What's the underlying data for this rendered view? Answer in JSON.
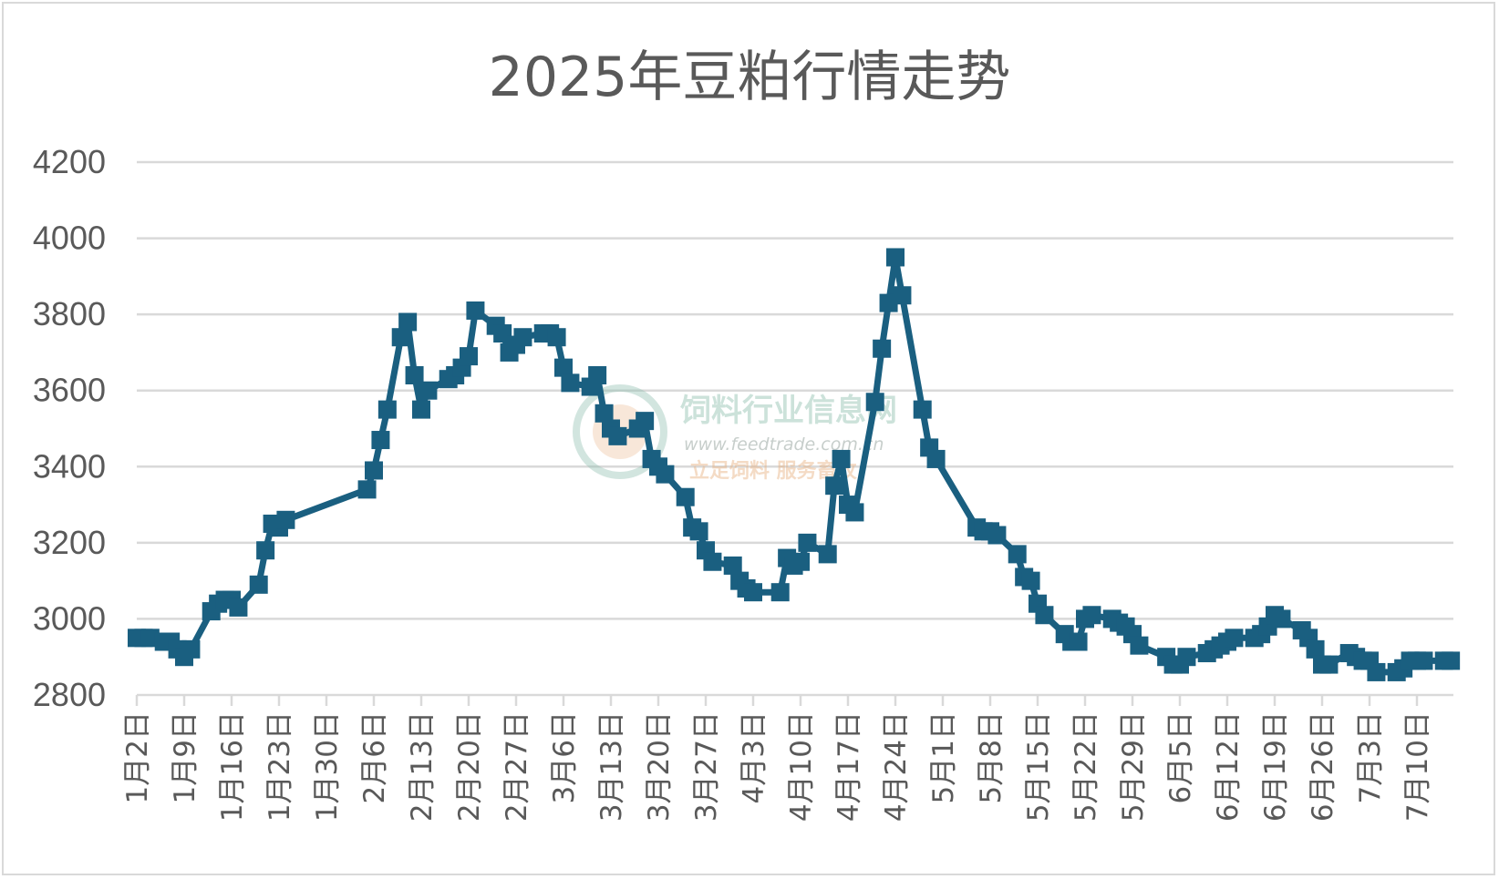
{
  "chart_data": {
    "type": "line",
    "title": "2025年豆粕行情走势",
    "xlabel": "",
    "ylabel": "",
    "ylim": [
      2800,
      4200
    ],
    "yticks": [
      2800,
      3000,
      3200,
      3400,
      3600,
      3800,
      4000,
      4200
    ],
    "grid": true,
    "legend": "none",
    "line_color": "#1a5f80",
    "grid_color": "#d9d9d9",
    "xticks": [
      "1月2日",
      "1月9日",
      "1月16日",
      "1月23日",
      "1月30日",
      "2月6日",
      "2月13日",
      "2月20日",
      "2月27日",
      "3月6日",
      "3月13日",
      "3月20日",
      "3月27日",
      "4月3日",
      "4月10日",
      "4月17日",
      "4月24日",
      "5月1日",
      "5月8日",
      "5月15日",
      "5月22日",
      "5月29日",
      "6月5日",
      "6月12日",
      "6月19日",
      "6月26日",
      "7月3日",
      "7月10日"
    ],
    "x_start": "2025-01-02",
    "x": [
      "2025-01-02",
      "2025-01-03",
      "2025-01-04",
      "2025-01-06",
      "2025-01-07",
      "2025-01-08",
      "2025-01-09",
      "2025-01-10",
      "2025-01-13",
      "2025-01-14",
      "2025-01-15",
      "2025-01-16",
      "2025-01-17",
      "2025-01-20",
      "2025-01-21",
      "2025-01-22",
      "2025-01-23",
      "2025-01-24",
      "2025-02-05",
      "2025-02-06",
      "2025-02-07",
      "2025-02-08",
      "2025-02-10",
      "2025-02-11",
      "2025-02-12",
      "2025-02-13",
      "2025-02-14",
      "2025-02-17",
      "2025-02-18",
      "2025-02-19",
      "2025-02-20",
      "2025-02-21",
      "2025-02-24",
      "2025-02-25",
      "2025-02-26",
      "2025-02-27",
      "2025-02-28",
      "2025-03-03",
      "2025-03-04",
      "2025-03-05",
      "2025-03-06",
      "2025-03-07",
      "2025-03-10",
      "2025-03-11",
      "2025-03-12",
      "2025-03-13",
      "2025-03-14",
      "2025-03-17",
      "2025-03-18",
      "2025-03-19",
      "2025-03-20",
      "2025-03-21",
      "2025-03-24",
      "2025-03-25",
      "2025-03-26",
      "2025-03-27",
      "2025-03-28",
      "2025-03-31",
      "2025-04-01",
      "2025-04-02",
      "2025-04-03",
      "2025-04-07",
      "2025-04-08",
      "2025-04-09",
      "2025-04-10",
      "2025-04-11",
      "2025-04-14",
      "2025-04-15",
      "2025-04-16",
      "2025-04-17",
      "2025-04-18",
      "2025-04-21",
      "2025-04-22",
      "2025-04-23",
      "2025-04-24",
      "2025-04-25",
      "2025-04-28",
      "2025-04-29",
      "2025-04-30",
      "2025-05-06",
      "2025-05-07",
      "2025-05-08",
      "2025-05-09",
      "2025-05-12",
      "2025-05-13",
      "2025-05-14",
      "2025-05-15",
      "2025-05-16",
      "2025-05-19",
      "2025-05-20",
      "2025-05-21",
      "2025-05-22",
      "2025-05-23",
      "2025-05-26",
      "2025-05-27",
      "2025-05-28",
      "2025-05-29",
      "2025-05-30",
      "2025-06-03",
      "2025-06-04",
      "2025-06-05",
      "2025-06-06",
      "2025-06-09",
      "2025-06-10",
      "2025-06-11",
      "2025-06-12",
      "2025-06-13",
      "2025-06-16",
      "2025-06-17",
      "2025-06-18",
      "2025-06-19",
      "2025-06-20",
      "2025-06-23",
      "2025-06-24",
      "2025-06-25",
      "2025-06-26",
      "2025-06-27",
      "2025-06-30",
      "2025-07-01",
      "2025-07-02",
      "2025-07-03",
      "2025-07-04",
      "2025-07-07",
      "2025-07-08",
      "2025-07-09",
      "2025-07-10",
      "2025-07-11",
      "2025-07-14",
      "2025-07-15"
    ],
    "values": [
      2950,
      2950,
      2950,
      2940,
      2940,
      2920,
      2900,
      2920,
      3020,
      3040,
      3050,
      3050,
      3030,
      3090,
      3180,
      3250,
      3240,
      3260,
      3340,
      3390,
      3470,
      3550,
      3740,
      3780,
      3640,
      3550,
      3600,
      3630,
      3640,
      3660,
      3690,
      3810,
      3770,
      3750,
      3700,
      3720,
      3740,
      3750,
      3750,
      3740,
      3660,
      3620,
      3610,
      3640,
      3540,
      3500,
      3480,
      3500,
      3520,
      3420,
      3400,
      3380,
      3320,
      3240,
      3230,
      3180,
      3150,
      3140,
      3100,
      3080,
      3070,
      3070,
      3160,
      3140,
      3150,
      3200,
      3170,
      3350,
      3420,
      3300,
      3280,
      3570,
      3710,
      3830,
      3950,
      3850,
      3550,
      3450,
      3420,
      3240,
      3230,
      3230,
      3220,
      3170,
      3110,
      3100,
      3040,
      3010,
      2960,
      2940,
      2940,
      3000,
      3010,
      3000,
      2990,
      2980,
      2960,
      2930,
      2900,
      2880,
      2880,
      2900,
      2910,
      2920,
      2930,
      2940,
      2950,
      2950,
      2960,
      2980,
      3010,
      3000,
      2970,
      2950,
      2920,
      2880,
      2880,
      2910,
      2900,
      2890,
      2890,
      2860,
      2860,
      2870,
      2890,
      2890,
      2890,
      2890,
      2890
    ]
  },
  "watermark": {
    "name": "饲料行业信息网",
    "url": "www.feedtrade.com.cn",
    "slogan": "立足饲料  服务畜牧"
  }
}
